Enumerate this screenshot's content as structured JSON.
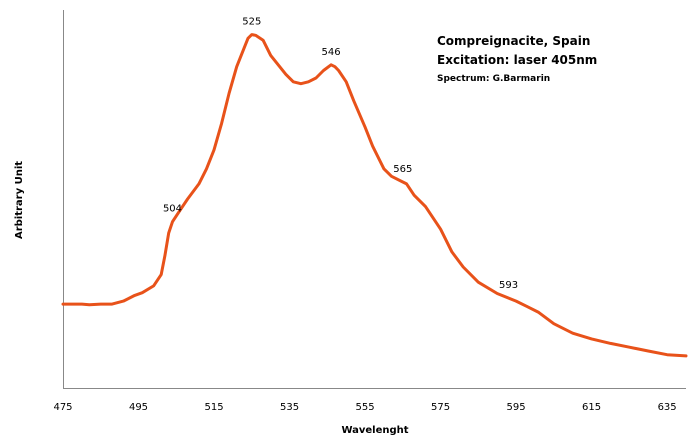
{
  "chart_data": {
    "type": "line",
    "title": "",
    "xlabel": "Wavelenght",
    "ylabel": "Arbitrary Unit",
    "xlim": [
      475,
      640
    ],
    "ylim": [
      0,
      1
    ],
    "x_ticks": [
      475,
      495,
      515,
      535,
      555,
      575,
      595,
      615,
      635
    ],
    "grid": false,
    "legend": "none",
    "annotations": {
      "line1": "Compreignacite, Spain",
      "line2": "Excitation: laser 405nm",
      "line3": "Spectrum: G.Barmarin"
    },
    "peak_labels": [
      {
        "x": 504,
        "label": "504"
      },
      {
        "x": 525,
        "label": "525"
      },
      {
        "x": 546,
        "label": "546"
      },
      {
        "x": 565,
        "label": "565"
      },
      {
        "x": 593,
        "label": "593"
      }
    ],
    "series": [
      {
        "color": "#e8521a",
        "points": [
          [
            475,
            0.222
          ],
          [
            480,
            0.222
          ],
          [
            482,
            0.22
          ],
          [
            485,
            0.222
          ],
          [
            488,
            0.222
          ],
          [
            491,
            0.23
          ],
          [
            494,
            0.245
          ],
          [
            496,
            0.252
          ],
          [
            499,
            0.27
          ],
          [
            501,
            0.3
          ],
          [
            502,
            0.35
          ],
          [
            503,
            0.41
          ],
          [
            504,
            0.44
          ],
          [
            506,
            0.47
          ],
          [
            508,
            0.5
          ],
          [
            511,
            0.54
          ],
          [
            513,
            0.58
          ],
          [
            515,
            0.63
          ],
          [
            517,
            0.7
          ],
          [
            519,
            0.78
          ],
          [
            521,
            0.85
          ],
          [
            523,
            0.9
          ],
          [
            524,
            0.925
          ],
          [
            525,
            0.935
          ],
          [
            526,
            0.933
          ],
          [
            528,
            0.92
          ],
          [
            530,
            0.88
          ],
          [
            532,
            0.855
          ],
          [
            534,
            0.83
          ],
          [
            536,
            0.81
          ],
          [
            538,
            0.805
          ],
          [
            540,
            0.81
          ],
          [
            542,
            0.82
          ],
          [
            544,
            0.84
          ],
          [
            546,
            0.855
          ],
          [
            547,
            0.85
          ],
          [
            548,
            0.84
          ],
          [
            550,
            0.81
          ],
          [
            552,
            0.76
          ],
          [
            555,
            0.69
          ],
          [
            557,
            0.64
          ],
          [
            560,
            0.58
          ],
          [
            562,
            0.56
          ],
          [
            565,
            0.545
          ],
          [
            566,
            0.54
          ],
          [
            568,
            0.51
          ],
          [
            571,
            0.48
          ],
          [
            575,
            0.42
          ],
          [
            578,
            0.36
          ],
          [
            581,
            0.32
          ],
          [
            585,
            0.28
          ],
          [
            590,
            0.25
          ],
          [
            595,
            0.23
          ],
          [
            598,
            0.215
          ],
          [
            601,
            0.2
          ],
          [
            605,
            0.17
          ],
          [
            610,
            0.145
          ],
          [
            615,
            0.13
          ],
          [
            620,
            0.118
          ],
          [
            625,
            0.108
          ],
          [
            630,
            0.098
          ],
          [
            635,
            0.088
          ],
          [
            640,
            0.085
          ]
        ]
      }
    ]
  }
}
